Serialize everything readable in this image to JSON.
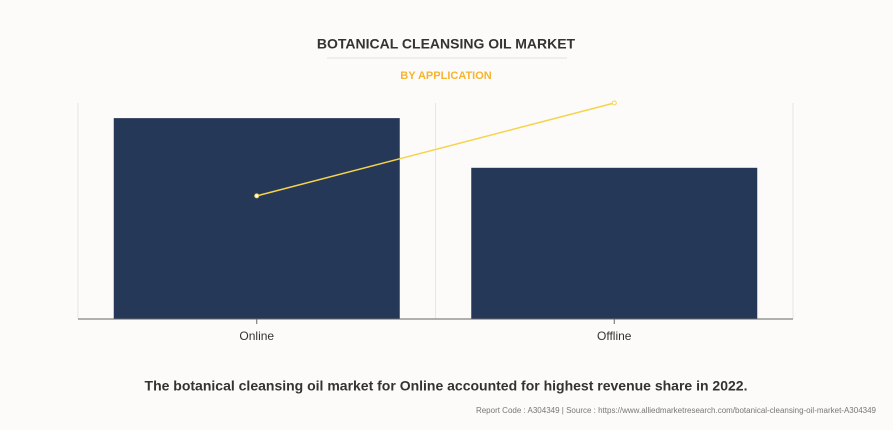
{
  "chart_data": {
    "type": "bar",
    "title": "BOTANICAL CLEANSING OIL MARKET",
    "subtitle": "BY APPLICATION",
    "categories": [
      "Online",
      "Offline"
    ],
    "series": [
      {
        "type": "bar",
        "color": "#253858",
        "values": [
          93,
          70
        ]
      },
      {
        "type": "line",
        "color": "#f5d34b",
        "values": [
          57,
          100
        ]
      }
    ],
    "ylim": [
      0,
      100
    ],
    "grid": true
  },
  "caption": "The botanical cleansing oil market for Online accounted for highest revenue share in 2022.",
  "source": "Report Code : A304349  |  Source : https://www.alliedmarketresearch.com/botanical-cleansing-oil-market-A304349"
}
